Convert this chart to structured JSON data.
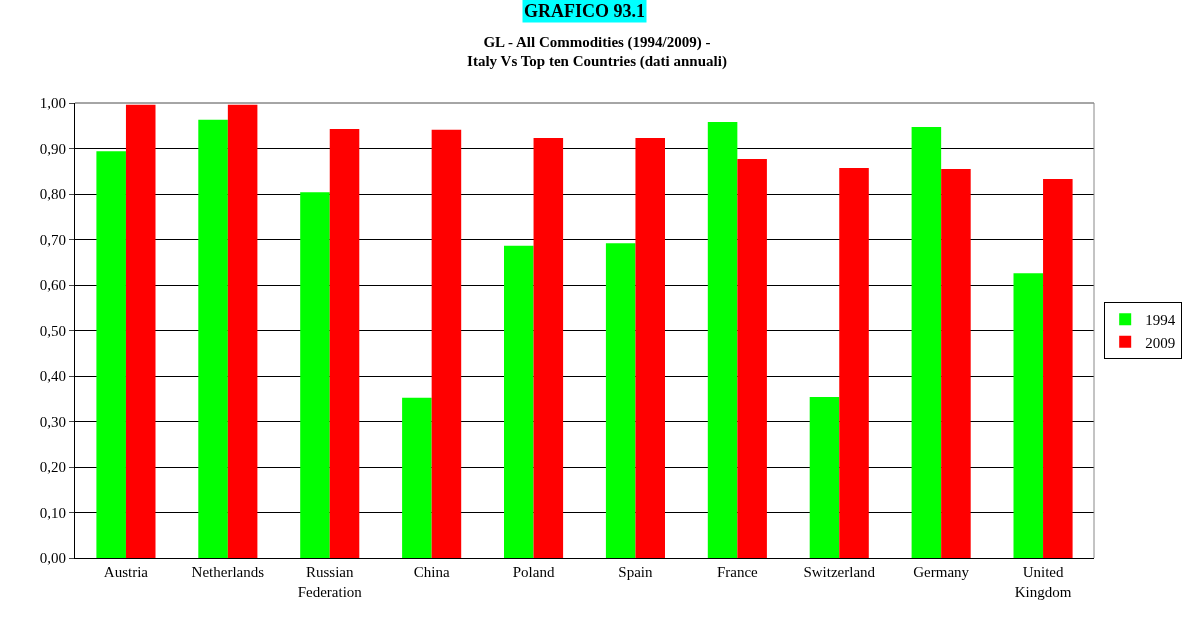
{
  "chart_data": {
    "type": "bar",
    "title": "GL - All Commodities (1994/2009) -\nItaly Vs Top ten Countries (dati annuali)",
    "annotations": [
      "GRAFICO 93.1"
    ],
    "categories": [
      "Austria",
      "Netherlands",
      "Russian\nFederation",
      "China",
      "Poland",
      "Spain",
      "France",
      "Switzerland",
      "Germany",
      "United\nKingdom"
    ],
    "series": [
      {
        "name": "1994",
        "color": "#00ff00",
        "values": [
          0.894,
          0.963,
          0.804,
          0.352,
          0.686,
          0.692,
          0.958,
          0.354,
          0.947,
          0.626
        ]
      },
      {
        "name": "2009",
        "color": "#ff0000",
        "values": [
          0.996,
          0.996,
          0.943,
          0.941,
          0.923,
          0.923,
          0.877,
          0.857,
          0.855,
          0.833
        ]
      }
    ],
    "ylim": [
      0,
      1
    ],
    "yticks": [
      {
        "value": 0,
        "label": "0,00"
      },
      {
        "value": 0.1,
        "label": "0,10"
      },
      {
        "value": 0.2,
        "label": "0,20"
      },
      {
        "value": 0.3,
        "label": "0,30"
      },
      {
        "value": 0.4,
        "label": "0,40"
      },
      {
        "value": 0.5,
        "label": "0,50"
      },
      {
        "value": 0.6,
        "label": "0,60"
      },
      {
        "value": 0.7,
        "label": "0,70"
      },
      {
        "value": 0.8,
        "label": "0,80"
      },
      {
        "value": 0.9,
        "label": "0,90"
      },
      {
        "value": 1,
        "label": "1,00"
      }
    ],
    "grid": "y",
    "legend": "right"
  }
}
